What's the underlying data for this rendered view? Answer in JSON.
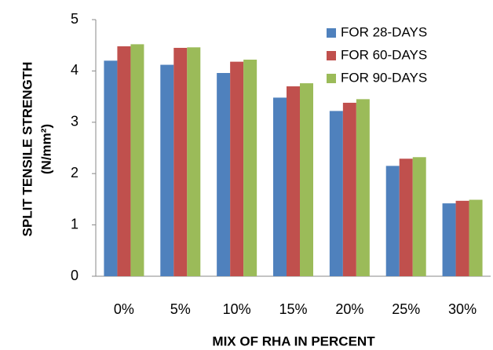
{
  "chart_data": {
    "type": "bar",
    "categories": [
      "0%",
      "5%",
      "10%",
      "15%",
      "20%",
      "25%",
      "30%"
    ],
    "series": [
      {
        "name": "FOR 28-DAYS",
        "color": "#4f81bd",
        "values": [
          4.2,
          4.12,
          3.96,
          3.48,
          3.22,
          2.15,
          1.42
        ]
      },
      {
        "name": "FOR 60-DAYS",
        "color": "#c0504d",
        "values": [
          4.48,
          4.45,
          4.18,
          3.7,
          3.38,
          2.29,
          1.47
        ]
      },
      {
        "name": "FOR 90-DAYS",
        "color": "#9bbb59",
        "values": [
          4.52,
          4.46,
          4.22,
          3.76,
          3.45,
          2.32,
          1.49
        ]
      }
    ],
    "xlabel": "MIX OF RHA IN PERCENT",
    "ylabel": [
      "SPLIT TENSILE STRENGTH",
      "(N/mm²)"
    ],
    "ylim": [
      0,
      5
    ],
    "yticks": [
      0,
      1,
      2,
      3,
      4,
      5
    ],
    "grid": false,
    "legend": "top-right"
  }
}
